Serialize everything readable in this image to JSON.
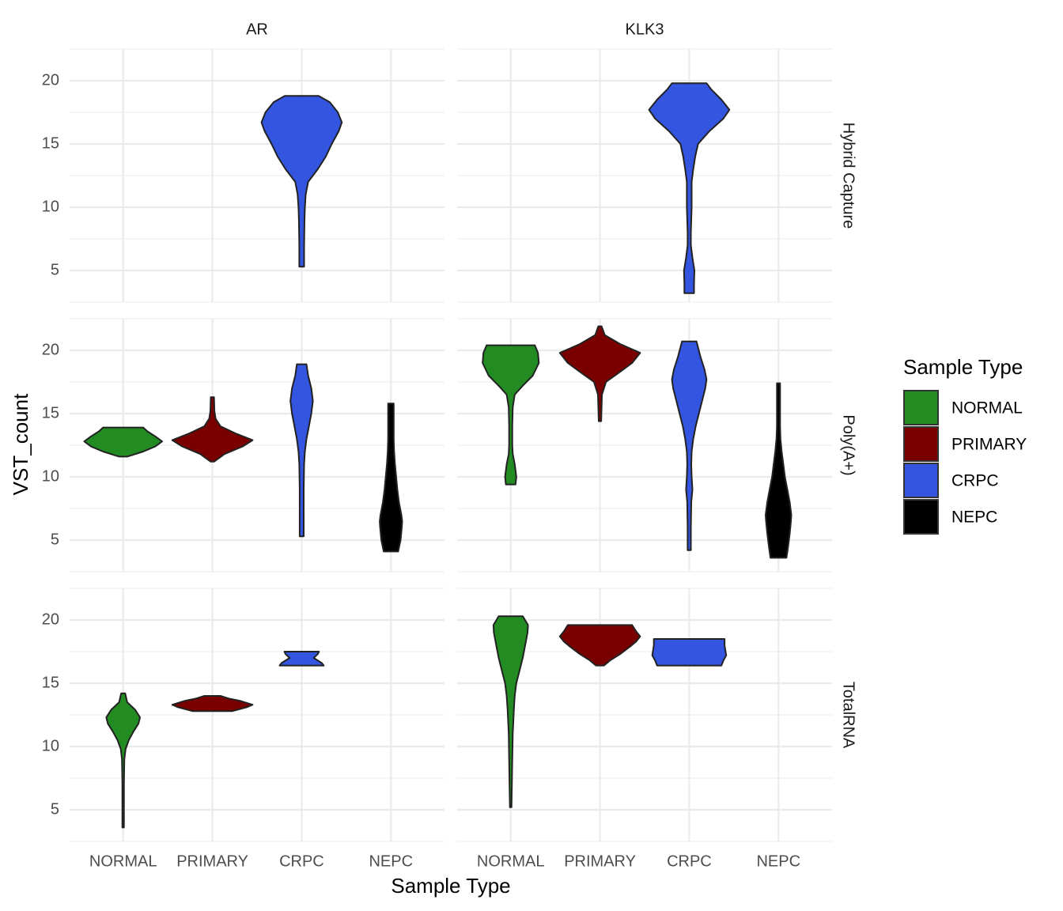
{
  "chart_data": {
    "type": "violin",
    "x_label": "Sample Type",
    "y_label": "VST_count",
    "legend_title": "Sample Type",
    "facet_cols": [
      "AR",
      "KLK3"
    ],
    "facet_rows": [
      "Hybrid Capture",
      "Poly(A+)",
      "TotalRNA"
    ],
    "categories": [
      "NORMAL",
      "PRIMARY",
      "CRPC",
      "NEPC"
    ],
    "series": [
      {
        "name": "NORMAL",
        "color": "#228b22"
      },
      {
        "name": "PRIMARY",
        "color": "#7a0000"
      },
      {
        "name": "CRPC",
        "color": "#3355e0"
      },
      {
        "name": "NEPC",
        "color": "#000000"
      }
    ],
    "ylim": [
      2.5,
      22.5
    ],
    "yticks": [
      5,
      10,
      15,
      20
    ],
    "yminor": [
      2.5,
      7.5,
      12.5,
      17.5,
      22.5
    ],
    "grid": true,
    "violins": [
      {
        "col": "AR",
        "row": "Hybrid Capture",
        "group": "CRPC",
        "y": [
          5.3,
          7,
          9,
          10,
          11,
          12,
          13,
          14,
          15,
          16,
          16.7,
          17.5,
          18.3,
          18.8
        ],
        "width": [
          0.06,
          0.06,
          0.07,
          0.08,
          0.1,
          0.16,
          0.4,
          0.6,
          0.75,
          0.92,
          1.0,
          0.9,
          0.7,
          0.42
        ]
      },
      {
        "col": "KLK3",
        "row": "Hybrid Capture",
        "group": "CRPC",
        "y": [
          3.2,
          4,
          5,
          6,
          7,
          8,
          10,
          12,
          13,
          14,
          15,
          16,
          17,
          17.7,
          18.5,
          19.3,
          19.8
        ],
        "width": [
          0.12,
          0.12,
          0.13,
          0.08,
          0.04,
          0.04,
          0.06,
          0.06,
          0.1,
          0.15,
          0.22,
          0.5,
          0.85,
          1.0,
          0.8,
          0.55,
          0.43
        ]
      },
      {
        "col": "AR",
        "row": "Poly(A+)",
        "group": "NORMAL",
        "y": [
          11.6,
          12,
          12.4,
          12.8,
          13.2,
          13.6,
          13.9
        ],
        "width": [
          0.1,
          0.5,
          0.8,
          0.97,
          0.8,
          0.6,
          0.5
        ]
      },
      {
        "col": "AR",
        "row": "Poly(A+)",
        "group": "PRIMARY",
        "y": [
          11.2,
          11.8,
          12.4,
          12.9,
          13.4,
          14,
          14.6,
          15.2,
          16.3
        ],
        "width": [
          0.04,
          0.3,
          0.75,
          1.0,
          0.6,
          0.2,
          0.08,
          0.05,
          0.04
        ]
      },
      {
        "col": "AR",
        "row": "Poly(A+)",
        "group": "CRPC",
        "y": [
          5.3,
          7,
          9,
          11,
          12,
          13,
          14,
          15,
          16,
          17,
          18,
          18.9
        ],
        "width": [
          0.05,
          0.05,
          0.05,
          0.06,
          0.08,
          0.12,
          0.18,
          0.24,
          0.28,
          0.24,
          0.16,
          0.12
        ]
      },
      {
        "col": "AR",
        "row": "Poly(A+)",
        "group": "NEPC",
        "y": [
          4.1,
          5,
          6,
          6.5,
          7,
          8,
          9,
          10,
          11,
          12,
          13,
          14,
          15,
          15.8
        ],
        "width": [
          0.18,
          0.24,
          0.27,
          0.28,
          0.26,
          0.2,
          0.16,
          0.13,
          0.1,
          0.08,
          0.07,
          0.07,
          0.07,
          0.07
        ]
      },
      {
        "col": "KLK3",
        "row": "Poly(A+)",
        "group": "NORMAL",
        "y": [
          9.4,
          10,
          11,
          11.8,
          12.5,
          14,
          15.5,
          16.5,
          17.2,
          18,
          19,
          19.8,
          20.4
        ],
        "width": [
          0.12,
          0.14,
          0.1,
          0.05,
          0.04,
          0.04,
          0.05,
          0.1,
          0.3,
          0.55,
          0.7,
          0.68,
          0.6
        ]
      },
      {
        "col": "KLK3",
        "row": "Poly(A+)",
        "group": "PRIMARY",
        "y": [
          14.4,
          15.5,
          16.5,
          17.5,
          18.3,
          19,
          19.8,
          20.5,
          21.2,
          21.9
        ],
        "width": [
          0.03,
          0.04,
          0.05,
          0.15,
          0.5,
          0.8,
          1.0,
          0.5,
          0.12,
          0.04
        ]
      },
      {
        "col": "KLK3",
        "row": "Poly(A+)",
        "group": "CRPC",
        "y": [
          4.2,
          6,
          8,
          9,
          10,
          11,
          12,
          13,
          14,
          15,
          16,
          17,
          17.7,
          18.5,
          19.5,
          20.7
        ],
        "width": [
          0.04,
          0.04,
          0.05,
          0.08,
          0.06,
          0.05,
          0.06,
          0.1,
          0.16,
          0.24,
          0.32,
          0.4,
          0.43,
          0.38,
          0.28,
          0.18
        ]
      },
      {
        "col": "KLK3",
        "row": "Poly(A+)",
        "group": "NEPC",
        "y": [
          3.6,
          4.5,
          5.5,
          6.5,
          7,
          8,
          9,
          10,
          11,
          12,
          13,
          14,
          15,
          16,
          17.4
        ],
        "width": [
          0.2,
          0.24,
          0.28,
          0.31,
          0.32,
          0.28,
          0.22,
          0.16,
          0.12,
          0.08,
          0.05,
          0.04,
          0.04,
          0.04,
          0.04
        ]
      },
      {
        "col": "AR",
        "row": "TotalRNA",
        "group": "NORMAL",
        "y": [
          3.6,
          5,
          7,
          9,
          9.8,
          10.5,
          11.2,
          11.8,
          12.3,
          12.9,
          13.5,
          14.2
        ],
        "width": [
          0.02,
          0.02,
          0.02,
          0.03,
          0.06,
          0.14,
          0.26,
          0.38,
          0.42,
          0.3,
          0.1,
          0.05
        ]
      },
      {
        "col": "AR",
        "row": "TotalRNA",
        "group": "PRIMARY",
        "y": [
          12.8,
          13.1,
          13.3,
          13.6,
          13.8,
          14
        ],
        "width": [
          0.5,
          0.85,
          1.0,
          0.7,
          0.4,
          0.2
        ]
      },
      {
        "col": "AR",
        "row": "TotalRNA",
        "group": "CRPC",
        "y": [
          16.4,
          16.6,
          17,
          17.3,
          17.5
        ],
        "width": [
          0.55,
          0.5,
          0.3,
          0.4,
          0.43
        ]
      },
      {
        "col": "KLK3",
        "row": "TotalRNA",
        "group": "NORMAL",
        "y": [
          5.2,
          7,
          9,
          11,
          13,
          14,
          15,
          16,
          17,
          18,
          19,
          19.6,
          20.3
        ],
        "width": [
          0.02,
          0.03,
          0.04,
          0.05,
          0.08,
          0.1,
          0.14,
          0.22,
          0.3,
          0.36,
          0.42,
          0.43,
          0.3
        ]
      },
      {
        "col": "KLK3",
        "row": "TotalRNA",
        "group": "PRIMARY",
        "y": [
          16.4,
          16.8,
          17.3,
          17.9,
          18.3,
          18.7,
          19.1,
          19.6
        ],
        "width": [
          0.1,
          0.25,
          0.5,
          0.75,
          0.9,
          1.0,
          0.9,
          0.8
        ]
      },
      {
        "col": "KLK3",
        "row": "TotalRNA",
        "group": "CRPC",
        "y": [
          16.4,
          16.8,
          17.2,
          17.6,
          18,
          18.5
        ],
        "width": [
          0.8,
          0.85,
          0.92,
          0.9,
          0.88,
          0.88
        ]
      }
    ]
  }
}
